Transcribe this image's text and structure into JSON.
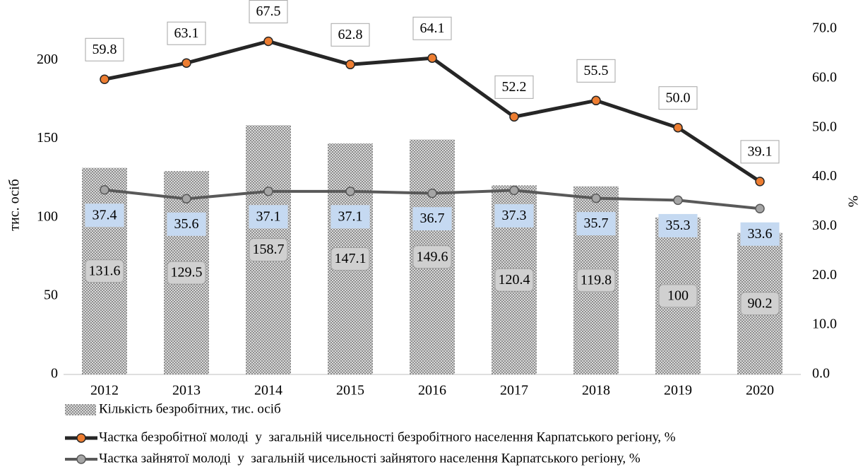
{
  "chart_data": {
    "type": "bar_line",
    "categories": [
      "2012",
      "2013",
      "2014",
      "2015",
      "2016",
      "2017",
      "2018",
      "2019",
      "2020"
    ],
    "ylabel": "тис. осіб",
    "y2label": "%",
    "ylim": [
      0,
      220
    ],
    "yticks": [
      0,
      50,
      100,
      150,
      200
    ],
    "y2lim": [
      0,
      70
    ],
    "y2ticks": [
      {
        "value": 0,
        "label": "0.0"
      },
      {
        "value": 10,
        "label": "10.0"
      },
      {
        "value": 20,
        "label": "20.0"
      },
      {
        "value": 30,
        "label": "30.0"
      },
      {
        "value": 40,
        "label": "40.0"
      },
      {
        "value": 50,
        "label": "50.0"
      },
      {
        "value": 60,
        "label": "60.0"
      },
      {
        "value": 70,
        "label": "70.0"
      }
    ],
    "series": [
      {
        "name": "Кількість безробітних, тис. осіб",
        "type": "bar",
        "color": "#9e9e9e",
        "values": [
          131.6,
          129.5,
          158.7,
          147.1,
          149.6,
          120.4,
          119.8,
          100,
          90.2
        ]
      },
      {
        "name": "Частка безробітної молоді  у  загальній чисельності безробітного населення Карпатського регіону, %",
        "type": "line",
        "axis": "y2",
        "color": "#262626",
        "marker_color": "#ed7d31",
        "values": [
          59.8,
          63.1,
          67.5,
          62.8,
          64.1,
          52.2,
          55.5,
          50.0,
          39.1
        ],
        "value_labels": [
          "59.8",
          "63.1",
          "67.5",
          "62.8",
          "64.1",
          "52.2",
          "55.5",
          "50.0",
          "39.1"
        ]
      },
      {
        "name": "Частка зайнятої молоді  у  загальній чисельності зайнятого населення Карпатського регіону, %",
        "type": "line",
        "axis": "y2",
        "color": "#595959",
        "marker_color": "#a5a5a5",
        "values": [
          37.4,
          35.6,
          37.1,
          37.1,
          36.7,
          37.3,
          35.7,
          35.3,
          33.6
        ],
        "value_labels": [
          "37.4",
          "35.6",
          "37.1",
          "37.1",
          "36.7",
          "37.3",
          "35.7",
          "35.3",
          "33.6"
        ]
      }
    ]
  }
}
